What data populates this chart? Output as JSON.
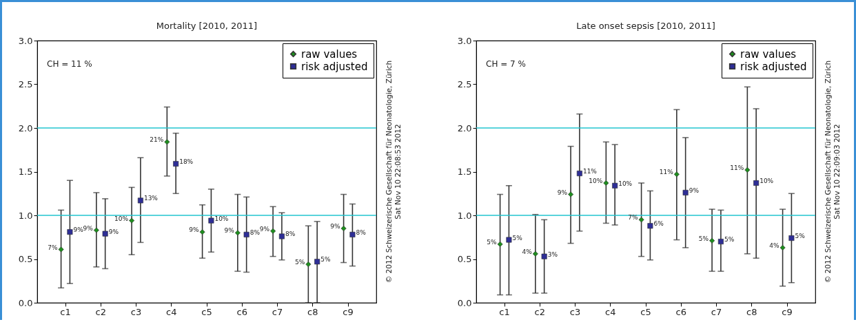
{
  "chart_data": [
    {
      "type": "scatter",
      "title": "Mortality [2010, 2011]",
      "categories": [
        "c1",
        "c2",
        "c3",
        "c4",
        "c5",
        "c6",
        "c7",
        "c8",
        "c9"
      ],
      "series": [
        {
          "name": "raw values",
          "color": "#1e8c1e",
          "marker": "diamond",
          "values": [
            0.61,
            0.83,
            0.94,
            1.84,
            0.81,
            0.8,
            0.82,
            0.44,
            0.85
          ],
          "errors": [
            [
              0.17,
              1.06
            ],
            [
              0.41,
              1.26
            ],
            [
              0.55,
              1.32
            ],
            [
              1.45,
              2.24
            ],
            [
              0.51,
              1.12
            ],
            [
              0.36,
              1.24
            ],
            [
              0.53,
              1.1
            ],
            [
              0.0,
              0.88
            ],
            [
              0.46,
              1.24
            ]
          ]
        },
        {
          "name": "risk adjusted",
          "color": "#2e2e96",
          "marker": "square",
          "values": [
            0.81,
            0.79,
            1.17,
            1.59,
            0.94,
            0.78,
            0.76,
            0.47,
            0.78
          ],
          "errors": [
            [
              0.22,
              1.4
            ],
            [
              0.39,
              1.19
            ],
            [
              0.69,
              1.66
            ],
            [
              1.25,
              1.94
            ],
            [
              0.58,
              1.3
            ],
            [
              0.35,
              1.21
            ],
            [
              0.49,
              1.03
            ],
            [
              0.0,
              0.93
            ],
            [
              0.42,
              1.13
            ]
          ]
        }
      ],
      "ylim": [
        0,
        3
      ],
      "yticks": [
        {
          "value": 0,
          "label": "0.0"
        },
        {
          "value": 0.5,
          "label": "0.5"
        },
        {
          "value": 1,
          "label": "1.0"
        },
        {
          "value": 1.5,
          "label": "1.5"
        },
        {
          "value": 2,
          "label": "2.0"
        },
        {
          "value": 2.5,
          "label": "2.5"
        },
        {
          "value": 3,
          "label": "3.0"
        }
      ],
      "ref_lines": [
        {
          "axis": "y",
          "value": 1,
          "color": "#22c4cf"
        },
        {
          "axis": "y",
          "value": 2,
          "color": "#22c4cf"
        }
      ],
      "legend": "top right",
      "annotations": [
        "CH = 11 %",
        "© 2012 Schweizerische Gesellschaft für Neonatologie, Zürich",
        "Sat Nov 10 22:08:53 2012",
        {
          "text": "7%",
          "x": "c1",
          "y": 0.61
        },
        {
          "text": "9%",
          "x": "c1",
          "y": 0.81
        },
        {
          "text": "9%",
          "x": "c2",
          "y": 0.83
        },
        {
          "text": "9%",
          "x": "c2",
          "y": 0.79
        },
        {
          "text": "10%",
          "x": "c3",
          "y": 0.94
        },
        {
          "text": "13%",
          "x": "c3",
          "y": 1.17
        },
        {
          "text": "21%",
          "x": "c4",
          "y": 1.84
        },
        {
          "text": "18%",
          "x": "c4",
          "y": 1.59
        },
        {
          "text": "9%",
          "x": "c5",
          "y": 0.81
        },
        {
          "text": "10%",
          "x": "c5",
          "y": 0.94
        },
        {
          "text": "9%",
          "x": "c6",
          "y": 0.8
        },
        {
          "text": "8%",
          "x": "c6",
          "y": 0.78
        },
        {
          "text": "9%",
          "x": "c7",
          "y": 0.82
        },
        {
          "text": "8%",
          "x": "c7",
          "y": 0.76
        },
        {
          "text": "5%",
          "x": "c8",
          "y": 0.44
        },
        {
          "text": "5%",
          "x": "c8",
          "y": 0.47
        },
        {
          "text": "9%",
          "x": "c9",
          "y": 0.85
        },
        {
          "text": "8%",
          "x": "c9",
          "y": 0.78
        }
      ]
    },
    {
      "type": "scatter",
      "title": "Late onset sepsis [2010, 2011]",
      "categories": [
        "c1",
        "c2",
        "c3",
        "c4",
        "c5",
        "c6",
        "c7",
        "c8",
        "c9"
      ],
      "series": [
        {
          "name": "raw values",
          "color": "#1e8c1e",
          "marker": "diamond",
          "values": [
            0.67,
            0.56,
            1.24,
            1.37,
            0.95,
            1.47,
            0.71,
            1.52,
            0.63
          ],
          "errors": [
            [
              0.09,
              1.24
            ],
            [
              0.11,
              1.01
            ],
            [
              0.68,
              1.79
            ],
            [
              0.91,
              1.84
            ],
            [
              0.53,
              1.37
            ],
            [
              0.72,
              2.21
            ],
            [
              0.36,
              1.07
            ],
            [
              0.56,
              2.47
            ],
            [
              0.19,
              1.07
            ]
          ]
        },
        {
          "name": "risk adjusted",
          "color": "#2e2e96",
          "marker": "square",
          "values": [
            0.72,
            0.53,
            1.48,
            1.34,
            0.88,
            1.26,
            0.7,
            1.37,
            0.74
          ],
          "errors": [
            [
              0.09,
              1.34
            ],
            [
              0.11,
              0.95
            ],
            [
              0.82,
              2.16
            ],
            [
              0.89,
              1.81
            ],
            [
              0.49,
              1.28
            ],
            [
              0.63,
              1.89
            ],
            [
              0.36,
              1.06
            ],
            [
              0.51,
              2.22
            ],
            [
              0.23,
              1.25
            ]
          ]
        }
      ],
      "ylim": [
        0,
        3
      ],
      "yticks": [
        {
          "value": 0,
          "label": "0.0"
        },
        {
          "value": 0.5,
          "label": "0.5"
        },
        {
          "value": 1,
          "label": "1.0"
        },
        {
          "value": 1.5,
          "label": "1.5"
        },
        {
          "value": 2,
          "label": "2.0"
        },
        {
          "value": 2.5,
          "label": "2.5"
        },
        {
          "value": 3,
          "label": "3.0"
        }
      ],
      "ref_lines": [
        {
          "axis": "y",
          "value": 1,
          "color": "#22c4cf"
        },
        {
          "axis": "y",
          "value": 2,
          "color": "#22c4cf"
        }
      ],
      "legend": "top right",
      "annotations": [
        "CH = 7 %",
        "© 2012 Schweizerische Gesellschaft für Neonatologie, Zürich",
        "Sat Nov 10 22:09:03 2012",
        {
          "text": "5%",
          "x": "c1",
          "y": 0.67
        },
        {
          "text": "5%",
          "x": "c1",
          "y": 0.72
        },
        {
          "text": "4%",
          "x": "c2",
          "y": 0.56
        },
        {
          "text": "3%",
          "x": "c2",
          "y": 0.53
        },
        {
          "text": "9%",
          "x": "c3",
          "y": 1.24
        },
        {
          "text": "11%",
          "x": "c3",
          "y": 1.48
        },
        {
          "text": "10%",
          "x": "c4",
          "y": 1.37
        },
        {
          "text": "10%",
          "x": "c4",
          "y": 1.34
        },
        {
          "text": "7%",
          "x": "c5",
          "y": 0.95
        },
        {
          "text": "6%",
          "x": "c5",
          "y": 0.88
        },
        {
          "text": "11%",
          "x": "c6",
          "y": 1.47
        },
        {
          "text": "9%",
          "x": "c6",
          "y": 1.26
        },
        {
          "text": "5%",
          "x": "c7",
          "y": 0.71
        },
        {
          "text": "5%",
          "x": "c7",
          "y": 0.7
        },
        {
          "text": "11%",
          "x": "c8",
          "y": 1.52
        },
        {
          "text": "10%",
          "x": "c8",
          "y": 1.37
        },
        {
          "text": "4%",
          "x": "c9",
          "y": 0.63
        },
        {
          "text": "5%",
          "x": "c9",
          "y": 0.74
        }
      ]
    }
  ]
}
